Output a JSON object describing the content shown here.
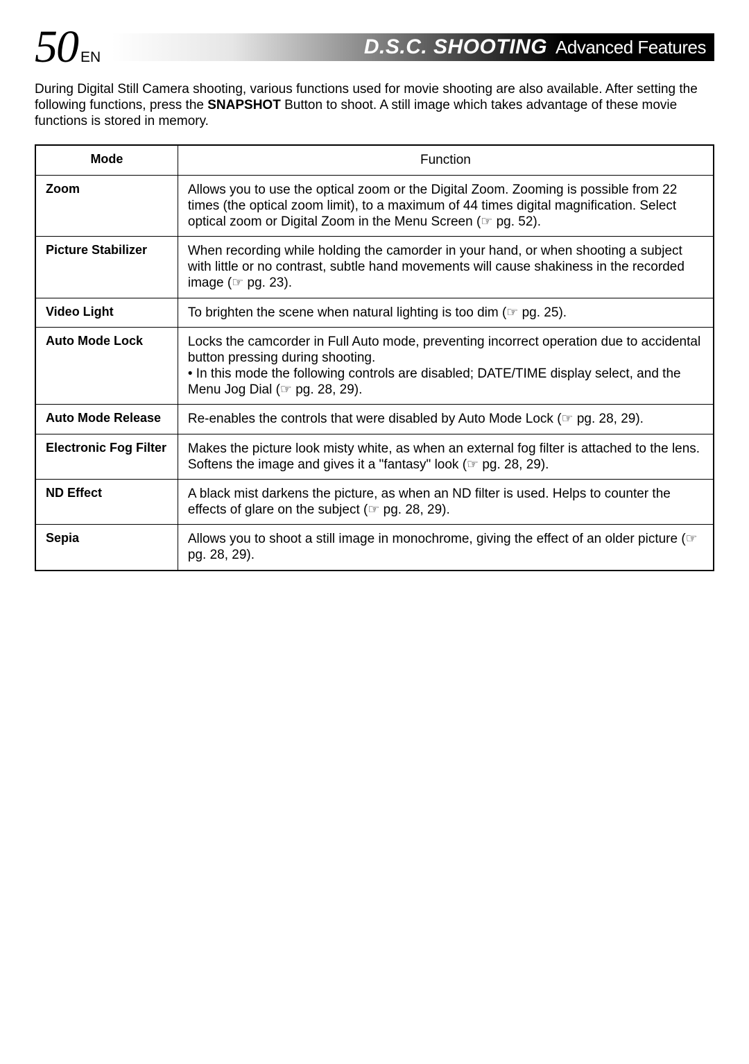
{
  "header": {
    "page_number": "50",
    "lang_code": "EN",
    "title_main": "D.S.C.  SHOOTING",
    "title_sub": "Advanced Features"
  },
  "intro": {
    "prefix": "During Digital Still Camera shooting, various functions used for movie shooting are also available. After setting the following functions, press the ",
    "bold": "SNAPSHOT",
    "suffix": " Button to shoot. A still image which takes advantage of these movie functions is stored in memory."
  },
  "table": {
    "header_mode": "Mode",
    "header_function": "Function",
    "rows": [
      {
        "mode": "Zoom",
        "function": "Allows you to use the optical zoom or the Digital Zoom. Zooming is possible from 22 times (the optical zoom limit), to a maximum of 44 times digital magnification. Select optical zoom or Digital Zoom in the Menu Screen (☞ pg. 52)."
      },
      {
        "mode": "Picture Stabilizer",
        "function": "When recording while holding the camorder in your hand, or when shooting a subject with little or no contrast, subtle hand movements will cause shakiness in the recorded image (☞ pg. 23)."
      },
      {
        "mode": "Video Light",
        "function": "To brighten the scene when natural lighting is too dim (☞ pg. 25)."
      },
      {
        "mode": "Auto Mode Lock",
        "function": "Locks the camcorder in Full Auto mode, preventing incorrect operation due to accidental button pressing during shooting.\n• In this mode the following controls are disabled; DATE/TIME display select, and the Menu Jog Dial (☞ pg. 28, 29)."
      },
      {
        "mode": "Auto Mode Release",
        "function": "Re-enables the controls that were disabled by Auto Mode Lock (☞ pg. 28, 29)."
      },
      {
        "mode": "Electronic Fog Filter",
        "function": "Makes the picture look misty white, as when an external fog filter is attached to the lens. Softens the image and gives it a \"fantasy\" look (☞ pg. 28, 29)."
      },
      {
        "mode": "ND Effect",
        "function": "A black mist darkens the picture, as when an ND filter is used. Helps to counter the effects of glare on the subject (☞ pg. 28, 29)."
      },
      {
        "mode": "Sepia",
        "function": "Allows you to shoot a still image in monochrome, giving the effect of an older picture (☞ pg. 28, 29)."
      }
    ]
  },
  "colors": {
    "text": "#000000",
    "background": "#ffffff",
    "banner_dark": "#000000",
    "banner_text": "#ffffff"
  }
}
